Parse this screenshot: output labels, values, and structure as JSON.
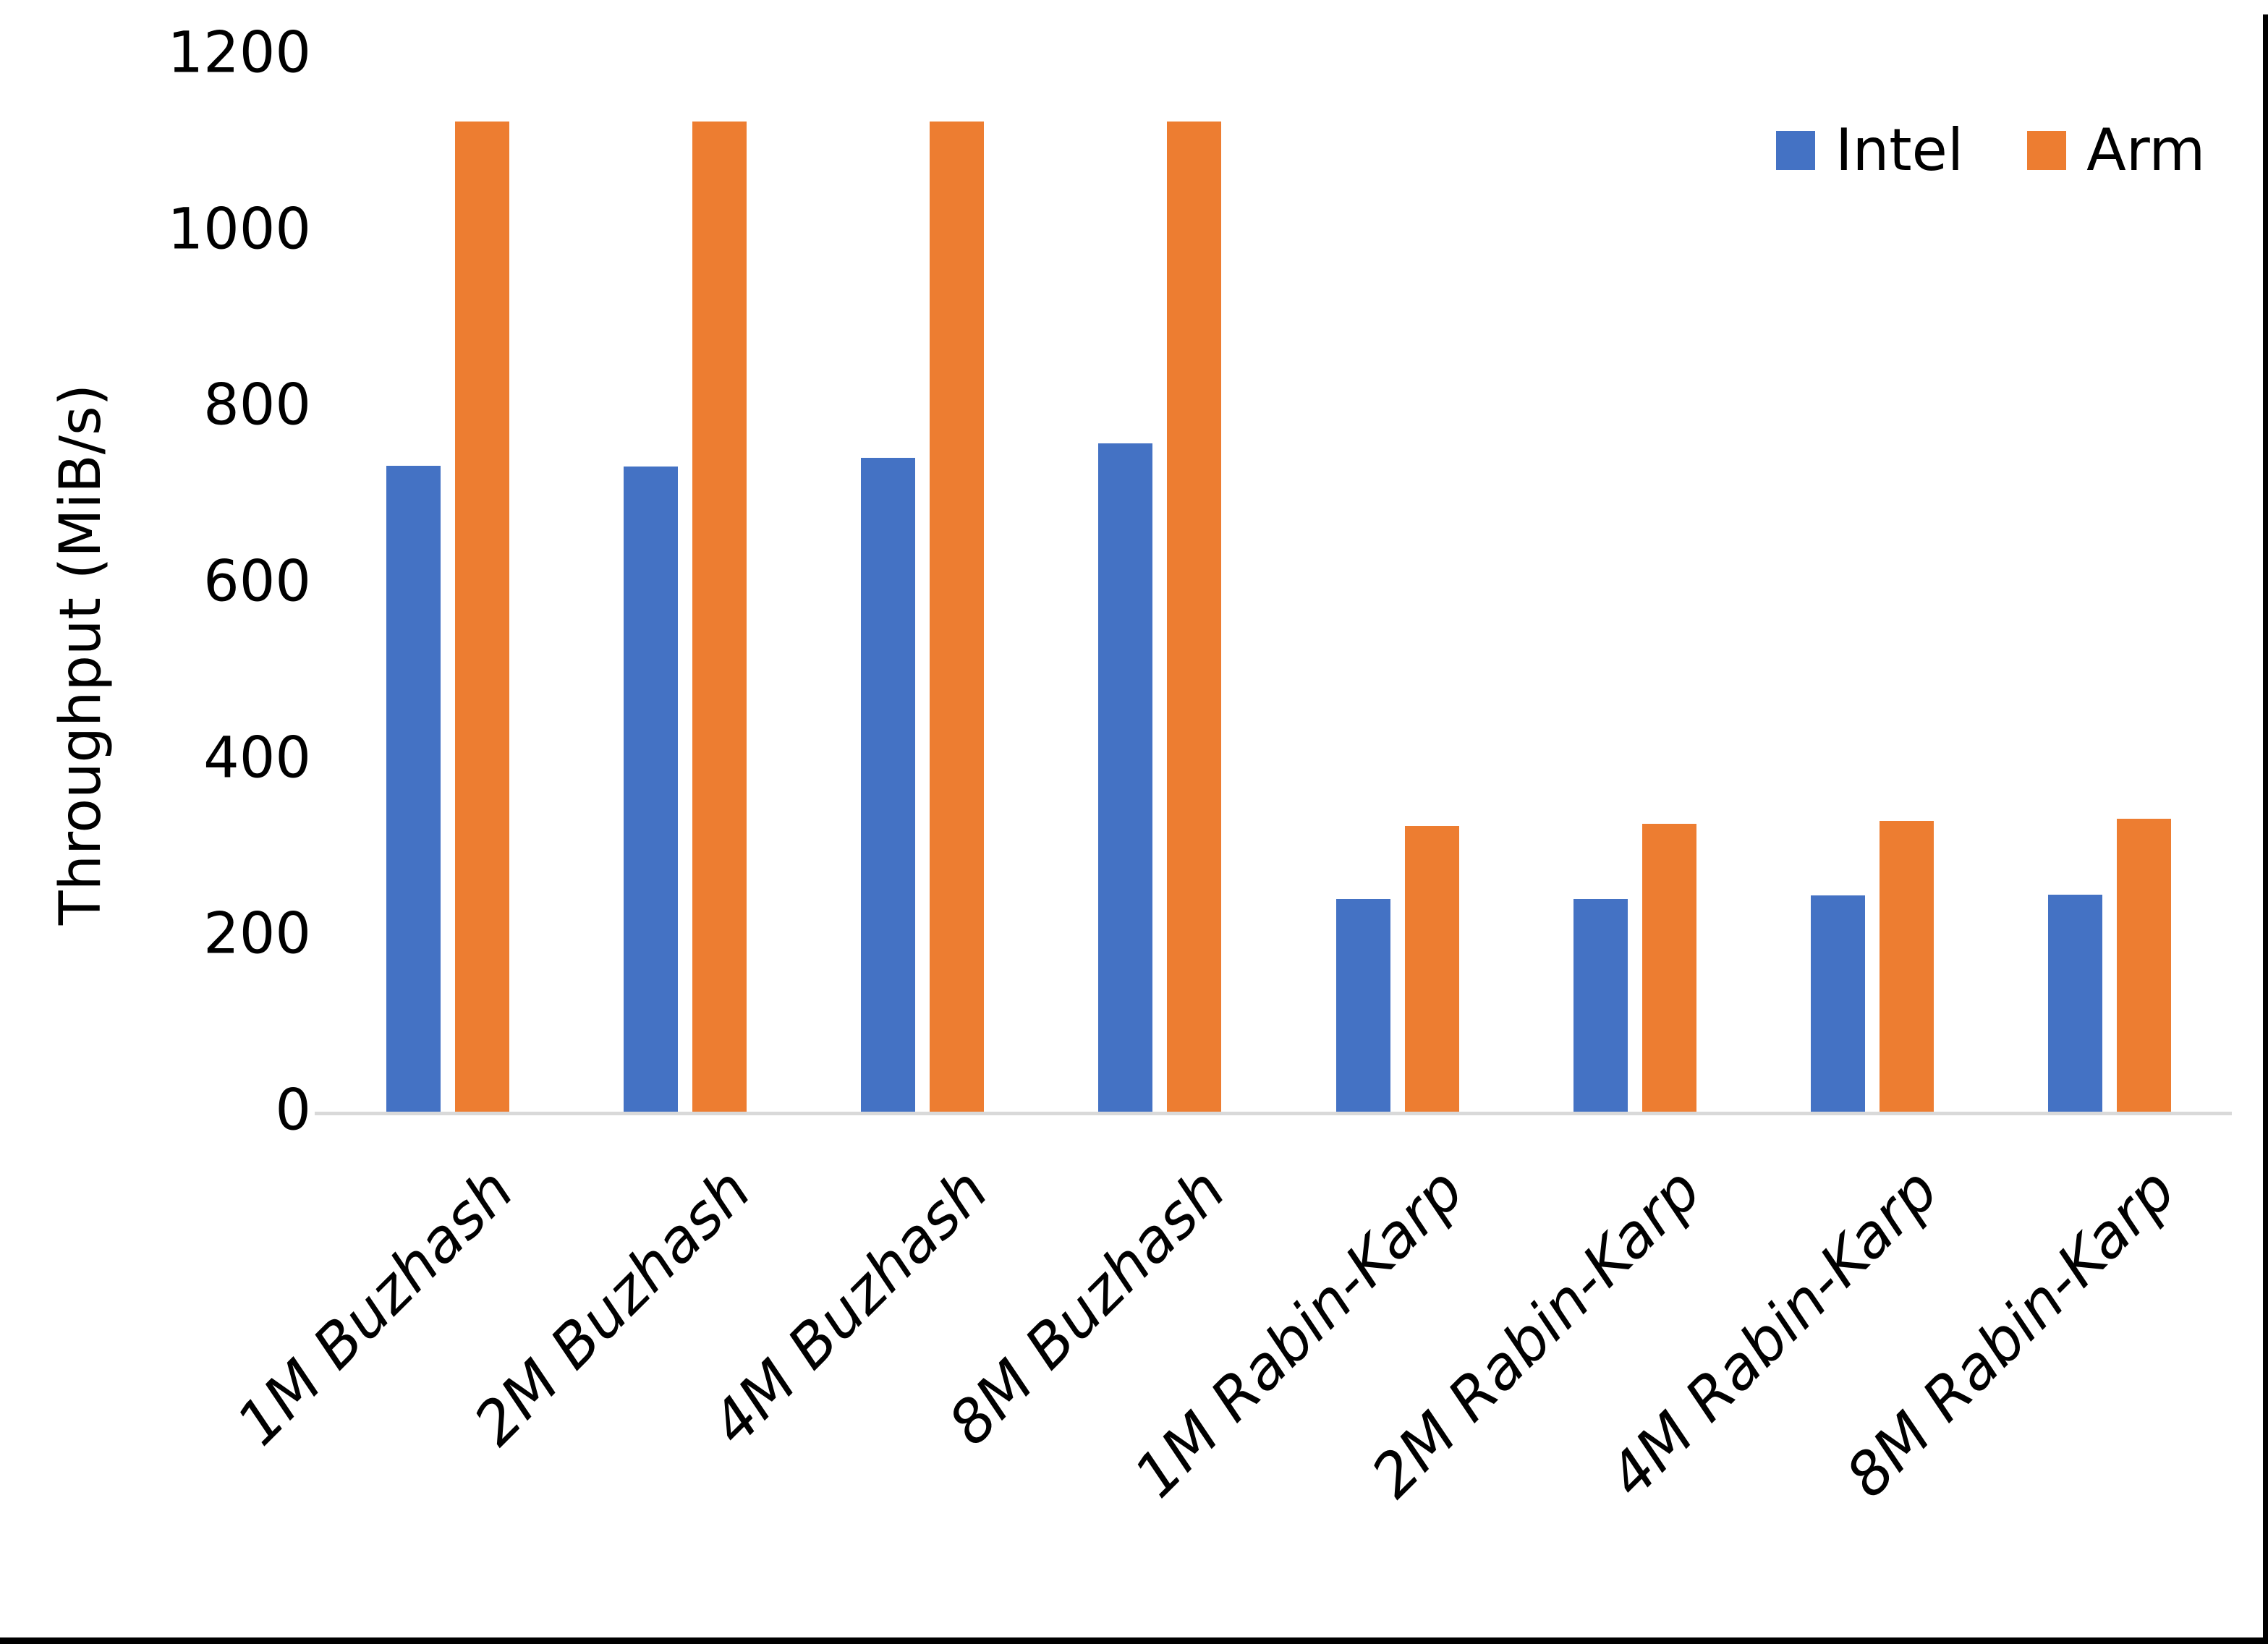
{
  "chart_data": {
    "type": "bar",
    "title": "",
    "xlabel": "",
    "ylabel": "Throughput (MiB/s)",
    "ylim": [
      0,
      1200
    ],
    "yticks": [
      0,
      200,
      400,
      600,
      800,
      1000,
      1200
    ],
    "grid": false,
    "legend_position": "top-right",
    "axis_line_color": "#d9d9d9",
    "frame_color": "#000000",
    "categories": [
      "1M Buzhash",
      "2M Buzhash",
      "4M Buzhash",
      "8M Buzhash",
      "1M Rabin-Karp",
      "2M Rabin-Karp",
      "4M Rabin-Karp",
      "8M Rabin-Karp"
    ],
    "series": [
      {
        "name": "Intel",
        "color": "#4472c4",
        "values": [
          735,
          734,
          744,
          760,
          243,
          243,
          247,
          248
        ]
      },
      {
        "name": "Arm",
        "color": "#ed7d31",
        "values": [
          1125,
          1125,
          1125,
          1125,
          326,
          328,
          332,
          334
        ]
      }
    ]
  }
}
